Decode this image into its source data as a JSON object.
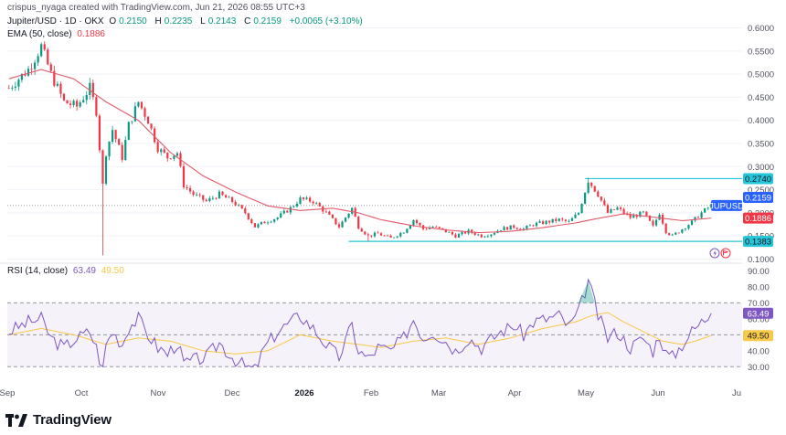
{
  "header": {
    "credit": "crispus_nyaga created with TradingView.com, Jun 21, 2026 08:55 UTC+3",
    "symbol": "Jupiter/USD · 1D · OKX",
    "ohlc": [
      {
        "label": "O",
        "value": "0.2150"
      },
      {
        "label": "H",
        "value": "0.2235"
      },
      {
        "label": "L",
        "value": "0.2143"
      },
      {
        "label": "C",
        "value": "0.2159"
      }
    ],
    "change": "+0.0065 (+3.10%)",
    "ema_label": "EMA (50, close)",
    "ema_value": "0.1886",
    "rsi_label": "RSI (14, close)",
    "rsi_value": "63.49",
    "rsi_ma_value": "49.50"
  },
  "logo": {
    "text": "TradingView",
    "icon": "tradingview-logo-icon"
  },
  "chart_data": [
    {
      "type": "candlestick",
      "symbol": "JUPUSD",
      "x_labels": [
        "Sep",
        "Oct",
        "Nov",
        "Dec",
        "2026",
        "Feb",
        "Mar",
        "Apr",
        "May",
        "Jun",
        "Ju"
      ],
      "ylim": [
        0.095,
        0.605
      ],
      "y_ticks": [
        "0.6000",
        "0.5500",
        "0.5000",
        "0.4500",
        "0.4000",
        "0.3500",
        "0.3000",
        "0.2500",
        "0.2000",
        "0.1500",
        "0.1000"
      ],
      "price_tags": [
        {
          "text": "0.2740",
          "value": 0.274,
          "color": "#26c6da",
          "text_color": "#131722"
        },
        {
          "text": "JUPUSD",
          "value": 0.2159,
          "color": "#2962ff",
          "text_color": "#ffffff"
        },
        {
          "text": "0.2159",
          "value": 0.2159,
          "color": "#2962ff",
          "text_color": "#ffffff"
        },
        {
          "text": "0.1886",
          "value": 0.1886,
          "color": "#f23645",
          "text_color": "#ffffff"
        },
        {
          "text": "0.1383",
          "value": 0.1383,
          "color": "#26c6da",
          "text_color": "#131722"
        }
      ],
      "levels": [
        0.274,
        0.1383
      ],
      "close_anchors": [
        [
          0,
          0.47
        ],
        [
          6,
          0.51
        ],
        [
          10,
          0.56
        ],
        [
          13,
          0.5
        ],
        [
          17,
          0.44
        ],
        [
          21,
          0.43
        ],
        [
          25,
          0.47
        ],
        [
          27,
          0.42
        ],
        [
          29,
          0.26
        ],
        [
          30,
          0.33
        ],
        [
          32,
          0.38
        ],
        [
          35,
          0.32
        ],
        [
          37,
          0.39
        ],
        [
          40,
          0.44
        ],
        [
          43,
          0.4
        ],
        [
          46,
          0.34
        ],
        [
          49,
          0.32
        ],
        [
          52,
          0.33
        ],
        [
          54,
          0.26
        ],
        [
          57,
          0.24
        ],
        [
          61,
          0.225
        ],
        [
          65,
          0.24
        ],
        [
          69,
          0.225
        ],
        [
          73,
          0.2
        ],
        [
          76,
          0.17
        ],
        [
          79,
          0.18
        ],
        [
          83,
          0.19
        ],
        [
          87,
          0.21
        ],
        [
          90,
          0.23
        ],
        [
          94,
          0.225
        ],
        [
          98,
          0.2
        ],
        [
          102,
          0.17
        ],
        [
          106,
          0.21
        ],
        [
          108,
          0.17
        ],
        [
          111,
          0.15
        ],
        [
          114,
          0.155
        ],
        [
          118,
          0.145
        ],
        [
          122,
          0.16
        ],
        [
          125,
          0.185
        ],
        [
          128,
          0.165
        ],
        [
          131,
          0.17
        ],
        [
          135,
          0.16
        ],
        [
          138,
          0.15
        ],
        [
          142,
          0.16
        ],
        [
          146,
          0.15
        ],
        [
          149,
          0.155
        ],
        [
          152,
          0.165
        ],
        [
          156,
          0.17
        ],
        [
          159,
          0.165
        ],
        [
          162,
          0.175
        ],
        [
          166,
          0.18
        ],
        [
          170,
          0.185
        ],
        [
          173,
          0.18
        ],
        [
          176,
          0.2
        ],
        [
          179,
          0.27
        ],
        [
          182,
          0.24
        ],
        [
          185,
          0.2
        ],
        [
          188,
          0.21
        ],
        [
          192,
          0.19
        ],
        [
          196,
          0.2
        ],
        [
          199,
          0.17
        ],
        [
          201,
          0.2
        ],
        [
          203,
          0.16
        ],
        [
          205,
          0.15
        ],
        [
          208,
          0.165
        ],
        [
          211,
          0.18
        ],
        [
          214,
          0.2
        ],
        [
          217,
          0.216
        ]
      ],
      "ema_anchors": [
        [
          0,
          0.49
        ],
        [
          10,
          0.51
        ],
        [
          20,
          0.49
        ],
        [
          30,
          0.44
        ],
        [
          40,
          0.4
        ],
        [
          50,
          0.33
        ],
        [
          60,
          0.28
        ],
        [
          70,
          0.245
        ],
        [
          80,
          0.215
        ],
        [
          90,
          0.205
        ],
        [
          100,
          0.21
        ],
        [
          108,
          0.2
        ],
        [
          115,
          0.185
        ],
        [
          125,
          0.172
        ],
        [
          135,
          0.163
        ],
        [
          145,
          0.157
        ],
        [
          155,
          0.16
        ],
        [
          165,
          0.168
        ],
        [
          175,
          0.178
        ],
        [
          182,
          0.188
        ],
        [
          190,
          0.198
        ],
        [
          200,
          0.19
        ],
        [
          208,
          0.183
        ],
        [
          217,
          0.1886
        ]
      ]
    },
    {
      "type": "line",
      "name": "RSI (14, close)",
      "ylim": [
        25,
        88
      ],
      "y_ticks": [
        "90.00",
        "80.00",
        "70.00",
        "60.00",
        "50.00",
        "40.00",
        "30.00"
      ],
      "bands": [
        30,
        70
      ],
      "midline": 50,
      "rsi_tag": {
        "text": "63.49",
        "value": 63.49,
        "color": "#7e57c2",
        "text_color": "#ffffff"
      },
      "ma_tag": {
        "text": "49.50",
        "value": 49.5,
        "color": "#f7c948",
        "text_color": "#131722"
      },
      "rsi_anchors": [
        [
          0,
          52
        ],
        [
          6,
          58
        ],
        [
          10,
          60
        ],
        [
          13,
          48
        ],
        [
          17,
          42
        ],
        [
          21,
          48
        ],
        [
          25,
          52
        ],
        [
          27,
          42
        ],
        [
          29,
          28
        ],
        [
          30,
          44
        ],
        [
          32,
          52
        ],
        [
          35,
          44
        ],
        [
          37,
          55
        ],
        [
          40,
          60
        ],
        [
          43,
          50
        ],
        [
          46,
          42
        ],
        [
          49,
          38
        ],
        [
          52,
          45
        ],
        [
          54,
          32
        ],
        [
          57,
          34
        ],
        [
          61,
          36
        ],
        [
          65,
          45
        ],
        [
          69,
          36
        ],
        [
          73,
          30
        ],
        [
          76,
          28
        ],
        [
          79,
          42
        ],
        [
          83,
          52
        ],
        [
          87,
          58
        ],
        [
          90,
          62
        ],
        [
          94,
          54
        ],
        [
          98,
          44
        ],
        [
          102,
          36
        ],
        [
          106,
          56
        ],
        [
          108,
          40
        ],
        [
          111,
          35
        ],
        [
          114,
          42
        ],
        [
          118,
          40
        ],
        [
          122,
          48
        ],
        [
          125,
          60
        ],
        [
          128,
          48
        ],
        [
          131,
          52
        ],
        [
          135,
          46
        ],
        [
          138,
          40
        ],
        [
          142,
          48
        ],
        [
          146,
          42
        ],
        [
          149,
          47
        ],
        [
          152,
          52
        ],
        [
          156,
          56
        ],
        [
          159,
          50
        ],
        [
          162,
          58
        ],
        [
          166,
          60
        ],
        [
          170,
          62
        ],
        [
          173,
          55
        ],
        [
          176,
          64
        ],
        [
          179,
          84
        ],
        [
          182,
          62
        ],
        [
          185,
          48
        ],
        [
          188,
          52
        ],
        [
          192,
          42
        ],
        [
          196,
          48
        ],
        [
          199,
          40
        ],
        [
          201,
          50
        ],
        [
          203,
          38
        ],
        [
          205,
          36
        ],
        [
          208,
          44
        ],
        [
          211,
          52
        ],
        [
          214,
          58
        ],
        [
          217,
          63.49
        ]
      ],
      "ma_anchors": [
        [
          0,
          50
        ],
        [
          10,
          54
        ],
        [
          20,
          50
        ],
        [
          30,
          44
        ],
        [
          40,
          48
        ],
        [
          50,
          46
        ],
        [
          60,
          40
        ],
        [
          70,
          38
        ],
        [
          80,
          40
        ],
        [
          90,
          50
        ],
        [
          100,
          46
        ],
        [
          108,
          44
        ],
        [
          115,
          42
        ],
        [
          125,
          46
        ],
        [
          135,
          48
        ],
        [
          145,
          44
        ],
        [
          155,
          48
        ],
        [
          165,
          54
        ],
        [
          175,
          58
        ],
        [
          180,
          62
        ],
        [
          185,
          64
        ],
        [
          190,
          58
        ],
        [
          196,
          52
        ],
        [
          202,
          46
        ],
        [
          208,
          44
        ],
        [
          212,
          46
        ],
        [
          217,
          49.5
        ]
      ]
    }
  ],
  "colors": {
    "up": "#089981",
    "down": "#f23645",
    "ema": "#e0596a",
    "rsi": "#7e57c2",
    "rsi_ma": "#f7c948",
    "level": "#26c6da",
    "grid": "#f0f3fa"
  }
}
